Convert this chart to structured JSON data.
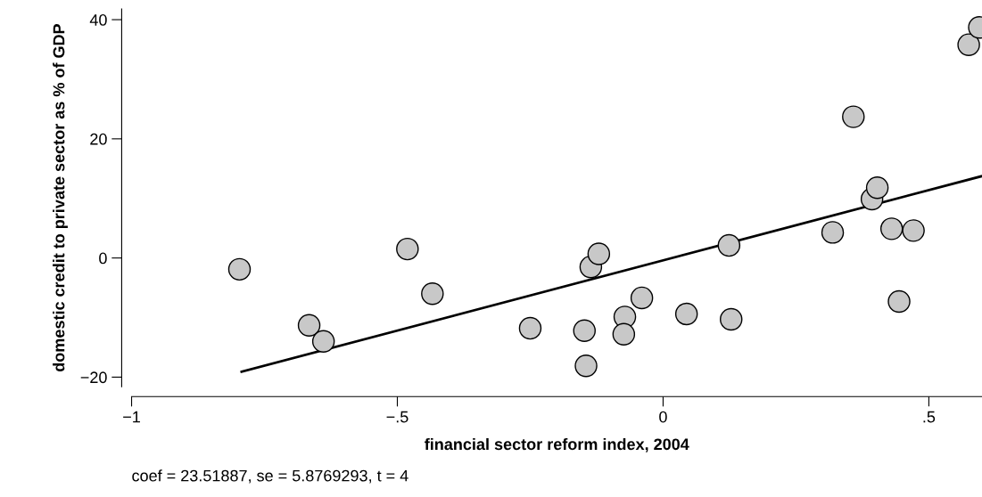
{
  "chart_data": {
    "type": "scatter",
    "xlabel": "financial sector reform index, 2004",
    "ylabel": "domestic credit to private sector as % of GDP",
    "annotations": [
      "coef = 23.51887, se = 5.8769293, t = 4"
    ],
    "xlim": [
      -1,
      0.6
    ],
    "ylim": [
      -21.6,
      41.8
    ],
    "xticks": [
      {
        "value": -1,
        "label": "−1"
      },
      {
        "value": -0.5,
        "label": "−.5"
      },
      {
        "value": 0,
        "label": "0"
      },
      {
        "value": 0.5,
        "label": ".5"
      }
    ],
    "yticks": [
      {
        "value": -20,
        "label": "−20"
      },
      {
        "value": 0,
        "label": "0"
      },
      {
        "value": 20,
        "label": "20"
      },
      {
        "value": 40,
        "label": "40"
      }
    ],
    "grid": false,
    "marker": "circle",
    "series": [
      {
        "color": "#c8c8c8",
        "x": [
          -0.797,
          -0.666,
          -0.639,
          -0.481,
          -0.434,
          -0.25,
          -0.148,
          -0.145,
          -0.136,
          -0.121,
          -0.072,
          -0.074,
          -0.04,
          0.044,
          0.124,
          0.128,
          0.319,
          0.358,
          0.393,
          0.403,
          0.43,
          0.444,
          0.471,
          0.575,
          0.595
        ],
        "values": [
          -1.9,
          -11.3,
          -14.0,
          1.5,
          -6.0,
          -11.8,
          -12.2,
          -18.1,
          -1.5,
          0.7,
          -9.9,
          -12.8,
          -6.7,
          -9.4,
          2.1,
          -10.3,
          4.3,
          23.7,
          9.9,
          11.8,
          4.9,
          -7.3,
          4.6,
          35.8,
          38.7
        ]
      },
      {
        "type": "line",
        "marker": "none",
        "color": "#000000",
        "x": [
          -0.793,
          0.598
        ],
        "values": [
          -19.1,
          13.7
        ]
      }
    ]
  }
}
